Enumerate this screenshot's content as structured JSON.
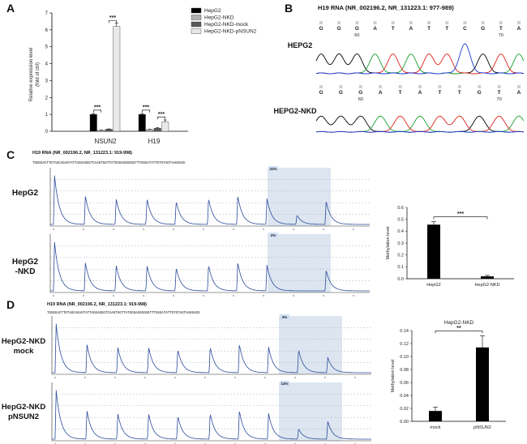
{
  "panels": {
    "A": {
      "label": "A"
    },
    "B": {
      "label": "B"
    },
    "C": {
      "label": "C"
    },
    "D": {
      "label": "D"
    }
  },
  "chart_data": [
    {
      "id": "A",
      "type": "bar",
      "ylabel": "Relative expression level\n(fold of ctrl)",
      "ylim": [
        0,
        7
      ],
      "yticks": [
        "0",
        "1",
        "2",
        "3",
        "4",
        "5",
        "6",
        "7"
      ],
      "categories": [
        "NSUN2",
        "H19"
      ],
      "series": [
        {
          "name": "HepG2",
          "values": [
            1.0,
            1.0
          ],
          "errors": [
            0.05,
            0.05
          ],
          "color": "#000000"
        },
        {
          "name": "HepG2-NKD",
          "values": [
            0.05,
            0.1
          ],
          "errors": [
            0.02,
            0.02
          ],
          "color": "#b0b0b0"
        },
        {
          "name": "HepG2-NKD-mock",
          "values": [
            0.12,
            0.18
          ],
          "errors": [
            0.02,
            0.03
          ],
          "color": "#5a5a5a"
        },
        {
          "name": "HepG2-NKD-pNSUN2",
          "values": [
            6.2,
            0.55
          ],
          "errors": [
            0.2,
            0.12
          ],
          "color": "#e8e8e8"
        }
      ],
      "annotations": [
        "***",
        "***",
        "***",
        "***"
      ]
    },
    {
      "id": "C-right",
      "type": "bar",
      "title": "",
      "ylabel": "Methylation level",
      "ylim": [
        0,
        0.6
      ],
      "yticks": [
        "0.0",
        "0.1",
        "0.2",
        "0.3",
        "0.4",
        "0.5",
        "0.6"
      ],
      "categories": [
        "HepG2",
        "HepG2-NKD"
      ],
      "values": [
        0.455,
        0.02
      ],
      "errors": [
        0.025,
        0.008
      ],
      "annotation": "***"
    },
    {
      "id": "D-right",
      "type": "bar",
      "title": "HepG2-NKD",
      "ylabel": "Methylation level",
      "ylim": [
        0,
        0.14
      ],
      "yticks": [
        "0.00",
        "0.02",
        "0.04",
        "0.06",
        "0.08",
        "0.10",
        "0.12",
        "0.14"
      ],
      "categories": [
        "mock",
        "pNSUN2"
      ],
      "values": [
        0.016,
        0.114
      ],
      "errors": [
        0.006,
        0.018
      ],
      "annotation": "**"
    }
  ],
  "B": {
    "title": "H19 RNA (NR_002196.2, NR_131223.1: 977-989)",
    "row1": {
      "label": "HEPG2",
      "bases": [
        "G",
        "G",
        "G",
        "A",
        "T",
        "A",
        "T",
        "T",
        "C",
        "G",
        "T",
        "A"
      ],
      "pos_left": "60",
      "pos_right": "70"
    },
    "row2": {
      "label": "HEPG2-NKD",
      "bases": [
        "G",
        "G",
        "G",
        "A",
        "T",
        "A",
        "T",
        "T",
        "G",
        "T",
        "A"
      ],
      "pos_left": "60",
      "pos_right": "70"
    }
  },
  "C": {
    "title": "H19 RNA (NR_002196.2, NR_131223.1: 919-998)",
    "sequence": "TGGGGACTTGTAGCAGAGTATTAGGAGGGTCAAGTGGTTATGGGAGGGGGGTTTGGGATATTGTGTAGTAAGGAGG",
    "row1": {
      "label": "HepG2",
      "pct": "41%"
    },
    "row2": {
      "label": "HepG2\n-NKD",
      "pct": "2%"
    }
  },
  "D": {
    "title": "H19 RNA (NR_002196.2, NR_131223.1: 919-998)",
    "sequence": "TGGGGACTTGTAGCAGAGTATTAGGAGGGTCAAGTGGTTATGGGAGGGGGGTTTGGGATATTGTGTAGTAAGGAGG",
    "row1": {
      "label": "HepG2-NKD\nmock",
      "pct": "3%"
    },
    "row2": {
      "label": "HepG2-NKD\npNSUN2",
      "pct": "14%"
    }
  }
}
